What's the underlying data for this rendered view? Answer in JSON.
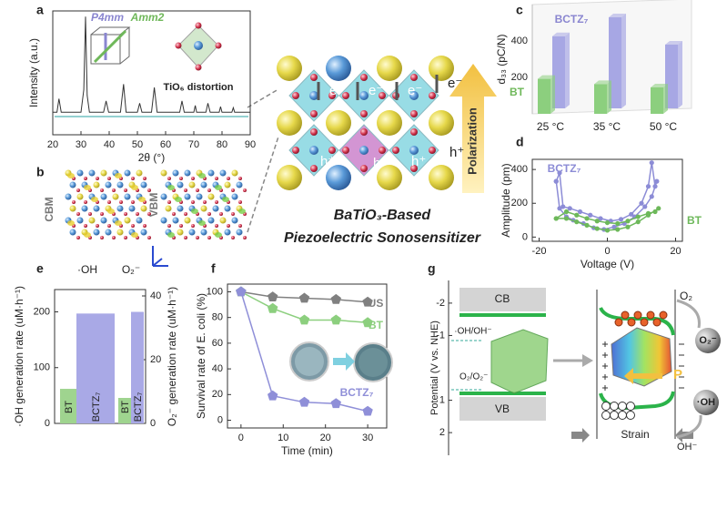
{
  "panels": [
    "a",
    "b",
    "c",
    "d",
    "e",
    "f",
    "g"
  ],
  "chart_data": [
    {
      "type": "line",
      "xlabel": "2θ (°)",
      "ylabel": "Intensity (a.u.)",
      "xlim": [
        20,
        90
      ],
      "ylim": [
        0,
        110
      ],
      "xticks": [
        20,
        30,
        40,
        50,
        60,
        70,
        80,
        90
      ],
      "color": "#333333",
      "x": [
        20,
        21.5,
        22.2,
        23,
        30,
        31,
        31.6,
        32.2,
        33,
        38,
        38.9,
        39.8,
        44,
        45.1,
        46,
        50,
        50.8,
        51.6,
        55,
        56,
        57,
        65,
        65.8,
        66.6,
        70,
        70.5,
        71,
        74.3,
        75,
        75.8,
        79,
        79.5,
        80,
        83.5,
        84,
        84.5,
        90
      ],
      "values": [
        20,
        20,
        32,
        20,
        20,
        40,
        105,
        35,
        20,
        20,
        30,
        20,
        20,
        45,
        20,
        20,
        28,
        20,
        20,
        42,
        20,
        20,
        30,
        20,
        20,
        26,
        20,
        20,
        28,
        20,
        20,
        25,
        20,
        20,
        24,
        20,
        20
      ],
      "annotations": [
        {
          "text": "P4mm",
          "color": "#8a86d0"
        },
        {
          "text": "Amm2",
          "color": "#6fb85a"
        },
        {
          "text": "TiO₆ distortion",
          "color": "#222222"
        }
      ]
    },
    {
      "type": "bar3d",
      "ylabel": "d₃₃ (pC/N)",
      "categories": [
        "25 °C",
        "35 °C",
        "50 °C"
      ],
      "ylim": [
        0,
        600
      ],
      "yticks": [
        200,
        400
      ],
      "series": [
        {
          "name": "BT",
          "color": "#8ccf7e",
          "values": [
            192,
            163,
            145
          ]
        },
        {
          "name": "BCTZ₇",
          "color": "#a7a7e4",
          "values": [
            396,
            500,
            350
          ]
        }
      ]
    },
    {
      "type": "line",
      "xlabel": "Voltage (V)",
      "ylabel": "Amplitude (pm)",
      "xlim": [
        -22,
        22
      ],
      "ylim": [
        -25,
        460
      ],
      "xticks": [
        -20,
        0,
        20
      ],
      "yticks": [
        0,
        200,
        400
      ],
      "series": [
        {
          "name": "BCTZ₇",
          "color": "#8c8cd6",
          "x": [
            -15,
            -14,
            -13,
            -11,
            -8,
            -5,
            -2,
            1,
            4,
            7,
            10,
            12,
            13,
            14,
            14.5,
            13,
            11,
            8,
            5,
            2,
            -1,
            -4,
            -7,
            -10,
            -12,
            -14,
            -15
          ],
          "values": [
            330,
            380,
            180,
            170,
            150,
            130,
            110,
            95,
            105,
            135,
            200,
            300,
            440,
            300,
            330,
            240,
            180,
            120,
            80,
            60,
            45,
            55,
            80,
            100,
            120,
            170,
            330
          ]
        },
        {
          "name": "BT",
          "color": "#6db85a",
          "x": [
            -15,
            -12,
            -9,
            -6,
            -3,
            0,
            3,
            6,
            9,
            12,
            14,
            15,
            12,
            9,
            6,
            3,
            0,
            -3,
            -6,
            -9,
            -12,
            -15
          ],
          "values": [
            110,
            150,
            130,
            110,
            95,
            85,
            80,
            95,
            120,
            140,
            150,
            170,
            130,
            90,
            60,
            45,
            40,
            50,
            70,
            90,
            110,
            110
          ]
        }
      ]
    },
    {
      "type": "bar",
      "categories": [
        "·OH",
        "O₂⁻"
      ],
      "category_axes": [
        "y",
        "y2"
      ],
      "ylabel": "·OH generation rate (uM·h⁻¹)",
      "y2label": "O₂⁻ generation rate (uM·h⁻¹)",
      "ylim": [
        0,
        240
      ],
      "yticks": [
        0,
        100,
        200
      ],
      "y2lim": [
        0,
        42
      ],
      "y2ticks": [
        0,
        20,
        40
      ],
      "series": [
        {
          "name": "BT",
          "color": "#9fd48f",
          "values": [
            62,
            8
          ]
        },
        {
          "name": "BCTZ₇",
          "color": "#a9a9e6",
          "values": [
            197,
            35
          ]
        }
      ]
    },
    {
      "type": "line",
      "xlabel": "Time (min)",
      "ylabel": "Survival rate of E. coli (%)",
      "xlim": [
        -3.2,
        34.5
      ],
      "ylim": [
        -6,
        106
      ],
      "xticks": [
        0,
        10,
        20,
        30
      ],
      "yticks": [
        0,
        20,
        40,
        60,
        80,
        100
      ],
      "x": [
        0,
        7.5,
        15,
        22.5,
        30
      ],
      "series": [
        {
          "name": "US",
          "color": "#808080",
          "values": [
            100,
            96,
            95,
            94,
            92
          ]
        },
        {
          "name": "BT",
          "color": "#8ccf7e",
          "values": [
            100,
            87,
            78,
            78,
            76
          ]
        },
        {
          "name": "BCTZ₇",
          "color": "#8f8fd8",
          "values": [
            100,
            19,
            14,
            13,
            7
          ]
        }
      ]
    }
  ],
  "panel_b": {
    "labels": [
      "CBM",
      "VBM"
    ]
  },
  "center": {
    "electron": "e⁻",
    "hole": "h⁺",
    "polarization": "Polarization",
    "title": [
      "BaTiO₃-Based",
      "Piezoelectric Sonosensitizer"
    ]
  },
  "panel_g": {
    "ylabel": "Potential (V vs. NHE)",
    "ylim": [
      -2.7,
      2.7
    ],
    "yticks": [
      -2,
      -1,
      1,
      2
    ],
    "cb": "CB",
    "vb": "VB",
    "oh_couple": "·OH/OH⁻",
    "o2_couple": "O₂/O₂⁻",
    "p": "P",
    "strain": "Strain",
    "o2": "O₂",
    "o2_radical": "O₂⁻",
    "oh_radical": "·OH",
    "oh_ion": "OH⁻"
  }
}
